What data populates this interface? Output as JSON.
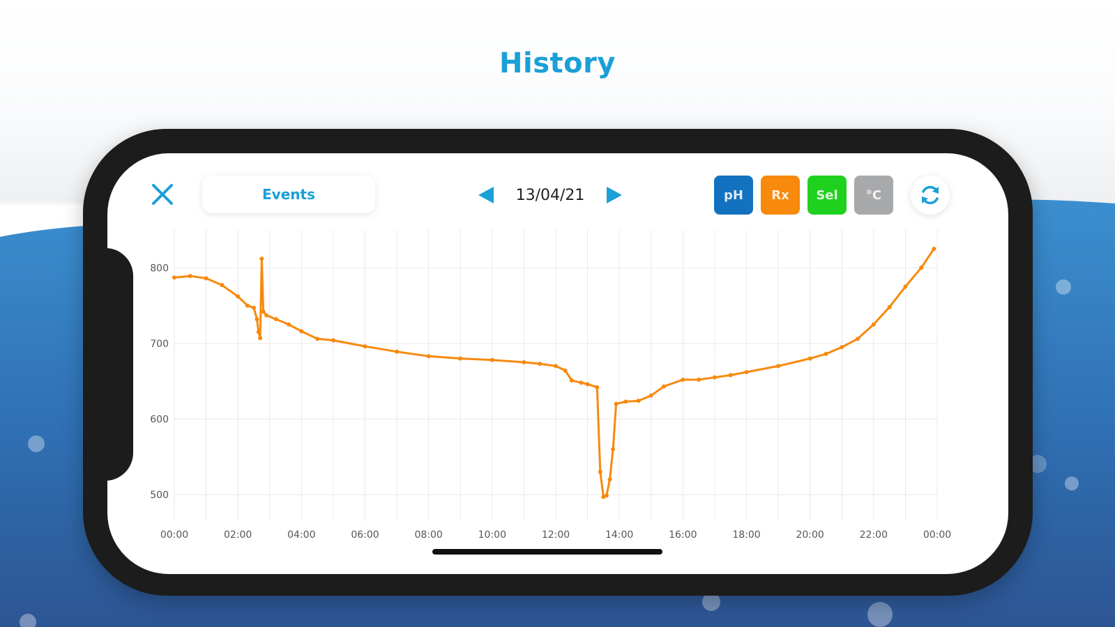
{
  "header": {
    "title": "History"
  },
  "toolbar": {
    "events_label": "Events",
    "date": "13/04/21",
    "chips": [
      {
        "label": "pH",
        "color": "#1372c0"
      },
      {
        "label": "Rx",
        "color": "#f7890d"
      },
      {
        "label": "Sel",
        "color": "#1fd01f"
      },
      {
        "label": "°C",
        "color": "#a7a9ab"
      }
    ]
  },
  "icons": {
    "close": "close-icon",
    "prev": "arrow-left-icon",
    "next": "arrow-right-icon",
    "refresh": "refresh-icon"
  },
  "colors": {
    "accent": "#1a9fd6",
    "line": "#f7890d",
    "grid": "#e9e9e9"
  },
  "chart_data": {
    "type": "line",
    "series": [
      {
        "color": "#f7890d",
        "x": [
          0,
          0.5,
          1,
          1.5,
          2,
          2.3,
          2.5,
          2.6,
          2.65,
          2.7,
          2.75,
          2.8,
          2.9,
          3.2,
          3.6,
          4,
          4.5,
          5,
          6,
          7,
          8,
          9,
          10,
          11,
          11.5,
          12,
          12.3,
          12.5,
          12.8,
          13,
          13.3,
          13.4,
          13.5,
          13.6,
          13.7,
          13.8,
          13.9,
          14.2,
          14.6,
          15,
          15.4,
          16,
          16.5,
          17,
          17.5,
          18,
          19,
          20,
          20.5,
          21,
          21.5,
          22,
          22.5,
          23,
          23.5,
          23.9
        ],
        "y": [
          787,
          789,
          786,
          777,
          762,
          750,
          747,
          732,
          715,
          707,
          812,
          742,
          737,
          732,
          725,
          716,
          706,
          704,
          696,
          689,
          683,
          680,
          678,
          675,
          673,
          670,
          664,
          651,
          648,
          646,
          642,
          530,
          497,
          499,
          520,
          560,
          620,
          623,
          624,
          631,
          643,
          652,
          652,
          655,
          658,
          662,
          670,
          680,
          686,
          695,
          706,
          725,
          748,
          775,
          800,
          825
        ]
      }
    ],
    "x_ticks": [
      "00:00",
      "02:00",
      "04:00",
      "06:00",
      "08:00",
      "10:00",
      "12:00",
      "14:00",
      "16:00",
      "18:00",
      "20:00",
      "22:00",
      "00:00"
    ],
    "y_ticks": [
      500,
      600,
      700,
      800
    ],
    "xlim": [
      0,
      24
    ],
    "ylim": [
      465,
      850
    ],
    "grid": true
  }
}
